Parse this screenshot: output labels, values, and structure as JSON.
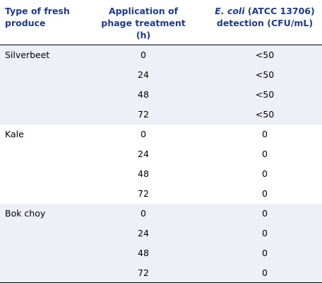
{
  "header": {
    "col_produce": "Type of fresh produce",
    "col_time": "Application of phage treatment (h)",
    "col_ecoli_italic": "E. coli",
    "col_ecoli_rest": " (ATCC 13706) detection (CFU/mL)"
  },
  "groups": [
    {
      "produce": "Silverbeet",
      "rows": [
        {
          "time": "0",
          "value": "<50"
        },
        {
          "time": "24",
          "value": "<50"
        },
        {
          "time": "48",
          "value": "<50"
        },
        {
          "time": "72",
          "value": "<50"
        }
      ]
    },
    {
      "produce": "Kale",
      "rows": [
        {
          "time": "0",
          "value": "0"
        },
        {
          "time": "24",
          "value": "0"
        },
        {
          "time": "48",
          "value": "0"
        },
        {
          "time": "72",
          "value": "0"
        }
      ]
    },
    {
      "produce": "Bok choy",
      "rows": [
        {
          "time": "0",
          "value": "0"
        },
        {
          "time": "24",
          "value": "0"
        },
        {
          "time": "48",
          "value": "0"
        },
        {
          "time": "72",
          "value": "0"
        }
      ]
    }
  ],
  "colors": {
    "header_text": "#1f3c88",
    "shaded_row": "#eef0f7",
    "rule": "#000000"
  }
}
